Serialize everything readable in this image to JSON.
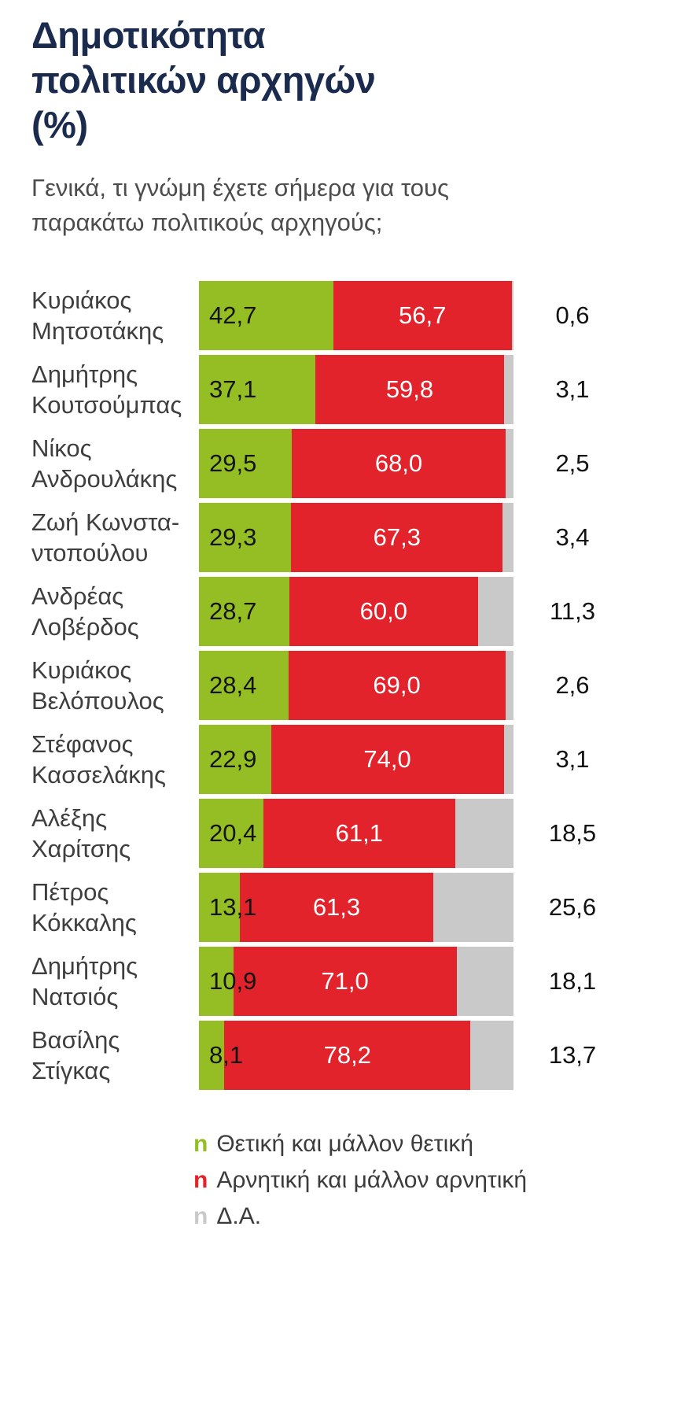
{
  "header": {
    "title_lines": [
      "Δημοτικότητα",
      "πολιτικών αρχηγών",
      "(%)"
    ],
    "subtitle_lines": [
      "Γενικά, τι γνώμη έχετε σήμερα για τους",
      "παρακάτω πολιτικούς αρχηγούς;"
    ]
  },
  "chart": {
    "colors": {
      "positive": "#94be23",
      "negative": "#e3232b",
      "na": "#c9c9c9"
    },
    "rows": [
      {
        "name_lines": [
          "Κυριάκος",
          "Μητσοτάκης"
        ],
        "positive": 42.7,
        "negative": 56.7,
        "na": 0.6,
        "positive_label": "42,7",
        "negative_label": "56,7",
        "na_label": "0,6"
      },
      {
        "name_lines": [
          "Δημήτρης",
          "Κουτσούμπας"
        ],
        "positive": 37.1,
        "negative": 59.8,
        "na": 3.1,
        "positive_label": "37,1",
        "negative_label": "59,8",
        "na_label": "3,1"
      },
      {
        "name_lines": [
          "Νίκος",
          "Ανδρουλάκης"
        ],
        "positive": 29.5,
        "negative": 68.0,
        "na": 2.5,
        "positive_label": "29,5",
        "negative_label": "68,0",
        "na_label": "2,5"
      },
      {
        "name_lines": [
          "Ζωή Κωνστα-",
          "ντοπούλου"
        ],
        "positive": 29.3,
        "negative": 67.3,
        "na": 3.4,
        "positive_label": "29,3",
        "negative_label": "67,3",
        "na_label": "3,4"
      },
      {
        "name_lines": [
          "Ανδρέας",
          "Λοβέρδος"
        ],
        "positive": 28.7,
        "negative": 60.0,
        "na": 11.3,
        "positive_label": "28,7",
        "negative_label": "60,0",
        "na_label": "11,3"
      },
      {
        "name_lines": [
          "Κυριάκος",
          "Βελόπουλος"
        ],
        "positive": 28.4,
        "negative": 69.0,
        "na": 2.6,
        "positive_label": "28,4",
        "negative_label": "69,0",
        "na_label": "2,6"
      },
      {
        "name_lines": [
          "Στέφανος",
          "Κασσελάκης"
        ],
        "positive": 22.9,
        "negative": 74.0,
        "na": 3.1,
        "positive_label": "22,9",
        "negative_label": "74,0",
        "na_label": "3,1"
      },
      {
        "name_lines": [
          "Αλέξης",
          "Χαρίτσης"
        ],
        "positive": 20.4,
        "negative": 61.1,
        "na": 18.5,
        "positive_label": "20,4",
        "negative_label": "61,1",
        "na_label": "18,5"
      },
      {
        "name_lines": [
          "Πέτρος",
          "Κόκκαλης"
        ],
        "positive": 13.1,
        "negative": 61.3,
        "na": 25.6,
        "positive_label": "13,1",
        "negative_label": "61,3",
        "na_label": "25,6"
      },
      {
        "name_lines": [
          "Δημήτρης",
          "Νατσιός"
        ],
        "positive": 10.9,
        "negative": 71.0,
        "na": 18.1,
        "positive_label": "10,9",
        "negative_label": "71,0",
        "na_label": "18,1"
      },
      {
        "name_lines": [
          "Βασίλης",
          "Στίγκας"
        ],
        "positive": 8.1,
        "negative": 78.2,
        "na": 13.7,
        "positive_label": "8,1",
        "negative_label": "78,2",
        "na_label": "13,7"
      }
    ]
  },
  "legend": {
    "items": [
      {
        "marker": "n",
        "label": "Θετική και μάλλον θετική",
        "color": "#94be23"
      },
      {
        "marker": "n",
        "label": "Αρνητική και μάλλον αρνητική",
        "color": "#e3232b"
      },
      {
        "marker": "n",
        "label": "Δ.Α.",
        "color": "#c9c9c9"
      }
    ]
  },
  "chart_data": {
    "type": "bar",
    "orientation": "horizontal",
    "stacked": true,
    "title": "Δημοτικότητα πολιτικών αρχηγών (%)",
    "subtitle": "Γενικά, τι γνώμη έχετε σήμερα για τους παρακάτω πολιτικούς αρχηγούς;",
    "categories": [
      "Κυριάκος Μητσοτάκης",
      "Δημήτρης Κουτσούμπας",
      "Νίκος Ανδρουλάκης",
      "Ζωή Κωνσταντοπούλου",
      "Ανδρέας Λοβέρδος",
      "Κυριάκος Βελόπουλος",
      "Στέφανος Κασσελάκης",
      "Αλέξης Χαρίτσης",
      "Πέτρος Κόκκαλης",
      "Δημήτρης Νατσιός",
      "Βασίλης Στίγκας"
    ],
    "series": [
      {
        "name": "Θετική και μάλλον θετική",
        "color": "#94be23",
        "values": [
          42.7,
          37.1,
          29.5,
          29.3,
          28.7,
          28.4,
          22.9,
          20.4,
          13.1,
          10.9,
          8.1
        ]
      },
      {
        "name": "Αρνητική και μάλλον αρνητική",
        "color": "#e3232b",
        "values": [
          56.7,
          59.8,
          68.0,
          67.3,
          60.0,
          69.0,
          74.0,
          61.1,
          61.3,
          71.0,
          78.2
        ]
      },
      {
        "name": "Δ.Α.",
        "color": "#c9c9c9",
        "values": [
          0.6,
          3.1,
          2.5,
          3.4,
          11.3,
          2.6,
          3.1,
          18.5,
          25.6,
          18.1,
          13.7
        ]
      }
    ],
    "xlim": [
      0,
      100
    ],
    "grid": false,
    "legend_position": "bottom"
  }
}
